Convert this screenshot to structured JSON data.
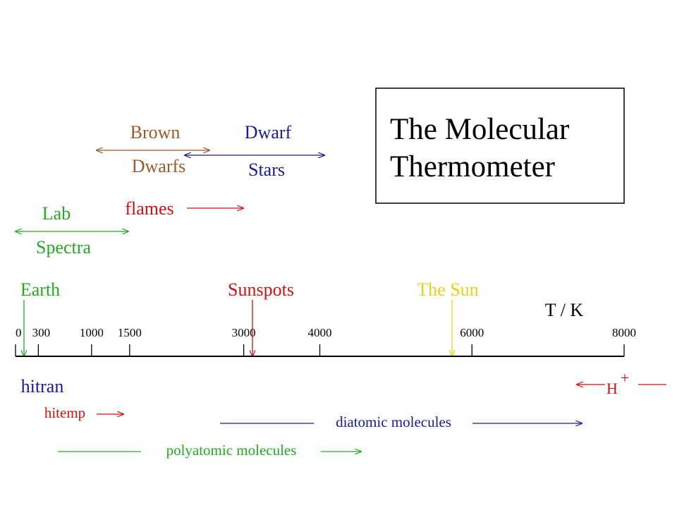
{
  "title": {
    "lines": [
      "The Molecular",
      "Thermometer"
    ]
  },
  "axis": {
    "lim": [
      0,
      8000
    ],
    "ticks": [
      0,
      300,
      1000,
      1500,
      3000,
      4000,
      6000,
      8000
    ],
    "label": "T / K"
  },
  "above": {
    "brown_dwarfs": [
      "Brown",
      "Dwarfs"
    ],
    "dwarf_stars": [
      "Dwarf",
      "Stars"
    ],
    "lab_spectra": [
      "Lab",
      "Spectra"
    ],
    "flames": "flames",
    "earth": "Earth",
    "sunspots": "Sunspots",
    "sun": "The Sun"
  },
  "below": {
    "hitran": "hitran",
    "hitemp": "hitemp",
    "diatomic": "diatomic molecules",
    "polyatomic": "polyatomic molecules",
    "h_plus": [
      "H",
      "+"
    ]
  }
}
